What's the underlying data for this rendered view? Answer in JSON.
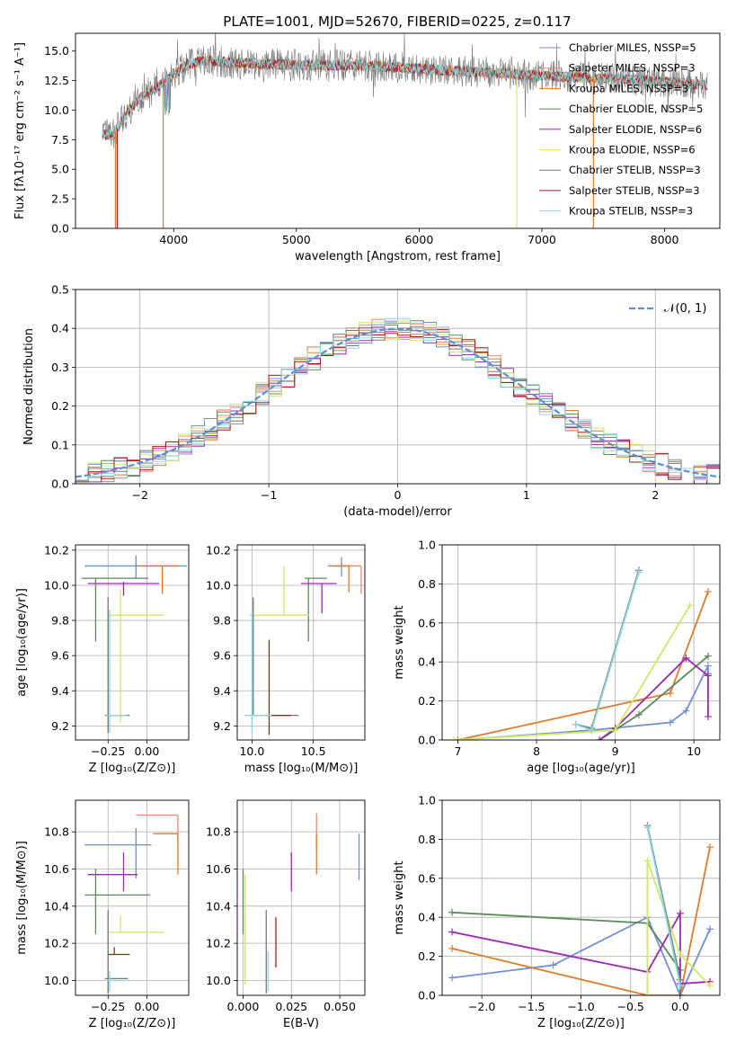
{
  "figure": {
    "title": "PLATE=1001, MJD=52670, FIBERID=0225, z=0.117"
  },
  "colors": {
    "chabrier_miles": "#6f8fd6",
    "salpeter_miles": "#ee8877",
    "kroupa_miles": "#e07b2a",
    "chabrier_elodie": "#5a8a5a",
    "salpeter_elodie": "#9a2ab0",
    "kroupa_elodie": "#cde86a",
    "chabrier_stelib": "#777777",
    "salpeter_stelib": "#b01818",
    "kroupa_stelib": "#8fd6e0",
    "normal": "#5b8fd6",
    "grid": "#b0b0b0"
  },
  "chart_data": [
    {
      "id": "spectrum",
      "type": "line",
      "title": "PLATE=1001, MJD=52670, FIBERID=0225, z=0.117",
      "xlabel": "wavelength [Angstrom, rest frame]",
      "ylabel": "Flux [fλ10⁻¹⁷ erg cm⁻² s⁻¹ A⁻¹]",
      "xlim": [
        3200,
        8450
      ],
      "ylim": [
        0,
        16.5
      ],
      "xticks": [
        "4000",
        "5000",
        "6000",
        "7000",
        "8000"
      ],
      "yticks": [
        "0.0",
        "2.5",
        "5.0",
        "7.5",
        "10.0",
        "12.5",
        "15.0"
      ],
      "grid": false,
      "legend_position": "right",
      "series": [
        {
          "name": "Chabrier MILES, NSSP=5",
          "color_key": "chabrier_miles"
        },
        {
          "name": "Salpeter MILES, NSSP=3",
          "color_key": "salpeter_miles"
        },
        {
          "name": "Kroupa MILES, NSSP=3",
          "color_key": "kroupa_miles"
        },
        {
          "name": "Chabrier ELODIE, NSSP=5",
          "color_key": "chabrier_elodie"
        },
        {
          "name": "Salpeter ELODIE, NSSP=6",
          "color_key": "salpeter_elodie"
        },
        {
          "name": "Kroupa ELODIE, NSSP=6",
          "color_key": "kroupa_elodie"
        },
        {
          "name": "Chabrier STELIB, NSSP=3",
          "color_key": "chabrier_stelib"
        },
        {
          "name": "Salpeter STELIB, NSSP=3",
          "color_key": "salpeter_stelib"
        },
        {
          "name": "Kroupa STELIB, NSSP=3",
          "color_key": "kroupa_stelib"
        }
      ],
      "continuum": {
        "x": [
          3420,
          3500,
          3600,
          3700,
          3800,
          3900,
          4000,
          4100,
          4200,
          4300,
          4500,
          5000,
          5500,
          6000,
          6500,
          7000,
          7500,
          8000,
          8350
        ],
        "y": [
          8.0,
          7.8,
          9.5,
          10.8,
          11.5,
          12.2,
          13.0,
          13.8,
          14.1,
          14.2,
          14.0,
          13.8,
          13.8,
          13.5,
          13.2,
          12.9,
          12.7,
          12.4,
          12.1
        ]
      },
      "dropouts": [
        {
          "x": 3525,
          "color_key": "kroupa_miles"
        },
        {
          "x": 3540,
          "color_key": "salpeter_stelib"
        },
        {
          "x": 3915,
          "color_key": "kroupa_miles"
        },
        {
          "x": 6795,
          "color_key": "kroupa_elodie"
        },
        {
          "x": 7420,
          "color_key": "kroupa_miles"
        }
      ]
    },
    {
      "id": "residuals",
      "type": "histogram",
      "xlabel": "(data-model)/error",
      "ylabel": "Normed distribution",
      "xlim": [
        -2.5,
        2.5
      ],
      "ylim": [
        0,
        0.5
      ],
      "xticks": [
        "−2",
        "−1",
        "0",
        "1",
        "2"
      ],
      "yticks": [
        "0.0",
        "0.1",
        "0.2",
        "0.3",
        "0.4",
        "0.5"
      ],
      "grid": true,
      "legend_position": "top-right",
      "legend": [
        "𝒩(0, 1)"
      ],
      "bin_width": 0.1,
      "bins_start": -2.5,
      "series_color_keys": [
        "chabrier_miles",
        "salpeter_miles",
        "kroupa_miles",
        "chabrier_elodie",
        "salpeter_elodie",
        "kroupa_elodie",
        "chabrier_stelib",
        "salpeter_stelib",
        "kroupa_stelib"
      ]
    },
    {
      "id": "age-vs-Z",
      "type": "errorbar",
      "xlabel": "Z [log₁₀(Z/Z⊙)]",
      "ylabel": "age  [log₁₀(age/yr)]",
      "xlim": [
        -0.46,
        0.27
      ],
      "ylim": [
        9.12,
        10.23
      ],
      "xticks": [
        "−0.25",
        "0.00"
      ],
      "yticks": [
        "9.2",
        "9.4",
        "9.6",
        "9.8",
        "10.0",
        "10.2"
      ],
      "grid": true,
      "points": [
        {
          "color_key": "chabrier_miles",
          "x": -0.07,
          "y": 10.11,
          "xlo": -0.4,
          "xhi": 0.26,
          "ylo": 10.04,
          "yhi": 10.17
        },
        {
          "color_key": "kroupa_miles",
          "x": 0.1,
          "y": 10.11,
          "xlo": -0.05,
          "xhi": 0.2,
          "ylo": 9.95,
          "yhi": 10.11
        },
        {
          "color_key": "salpeter_elodie",
          "x": -0.15,
          "y": 10.01,
          "xlo": -0.38,
          "xhi": 0.08,
          "ylo": 9.94,
          "yhi": 10.02
        },
        {
          "color_key": "chabrier_elodie",
          "x": -0.33,
          "y": 10.04,
          "xlo": -0.42,
          "xhi": 0.01,
          "ylo": 9.68,
          "yhi": 10.04
        },
        {
          "color_key": "kroupa_elodie",
          "x": -0.17,
          "y": 9.83,
          "xlo": -0.25,
          "xhi": 0.11,
          "ylo": 9.22,
          "yhi": 9.98
        },
        {
          "color_key": "chabrier_stelib",
          "x": -0.25,
          "y": 9.26,
          "xlo": -0.27,
          "xhi": -0.11,
          "ylo": 9.16,
          "yhi": 9.93
        },
        {
          "color_key": "kroupa_stelib",
          "x": -0.24,
          "y": 9.26,
          "xlo": -0.26,
          "xhi": -0.13,
          "ylo": 9.16,
          "yhi": 9.86
        }
      ]
    },
    {
      "id": "age-vs-mass",
      "type": "errorbar",
      "xlabel": "mass [log₁₀(M/M⊙)]",
      "ylabel": "",
      "xlim": [
        9.88,
        10.92
      ],
      "ylim": [
        9.12,
        10.23
      ],
      "xticks": [
        "10.0",
        "10.5"
      ],
      "yticks": [
        "9.2",
        "9.4",
        "9.6",
        "9.8",
        "10.0",
        "10.2"
      ],
      "grid": true,
      "points": [
        {
          "color_key": "chabrier_miles",
          "x": 10.73,
          "y": 10.11,
          "xlo": 10.62,
          "xhi": 10.82,
          "ylo": 10.05,
          "yhi": 10.16
        },
        {
          "color_key": "salpeter_miles",
          "x": 10.89,
          "y": 10.11,
          "xlo": 10.69,
          "xhi": 10.89,
          "ylo": 9.95,
          "yhi": 10.11
        },
        {
          "color_key": "kroupa_miles",
          "x": 10.79,
          "y": 10.11,
          "xlo": 10.65,
          "xhi": 10.8,
          "ylo": 9.96,
          "yhi": 10.11
        },
        {
          "color_key": "chabrier_elodie",
          "x": 10.46,
          "y": 10.04,
          "xlo": 10.43,
          "xhi": 10.61,
          "ylo": 9.68,
          "yhi": 10.04
        },
        {
          "color_key": "salpeter_elodie",
          "x": 10.57,
          "y": 10.01,
          "xlo": 10.4,
          "xhi": 10.69,
          "ylo": 9.84,
          "yhi": 10.01
        },
        {
          "color_key": "kroupa_elodie",
          "x": 10.26,
          "y": 9.83,
          "xlo": 9.98,
          "xhi": 10.47,
          "ylo": 9.83,
          "yhi": 10.11
        },
        {
          "color_key": "chabrier_stelib",
          "x": 10.01,
          "y": 9.26,
          "xlo": 9.98,
          "xhi": 10.38,
          "ylo": 9.26,
          "yhi": 9.93
        },
        {
          "color_key": "salpeter_stelib",
          "x": 10.14,
          "y": 9.26,
          "xlo": 10.12,
          "xhi": 10.32,
          "ylo": 9.15,
          "yhi": 9.69
        },
        {
          "color_key": "kroupa_stelib",
          "x": 10.0,
          "y": 9.26,
          "xlo": 9.94,
          "xhi": 10.16,
          "ylo": 9.16,
          "yhi": 9.86
        }
      ]
    },
    {
      "id": "massweight-vs-age",
      "type": "line",
      "xlabel": "age  [log₁₀(age/yr)]",
      "ylabel": "mass weight",
      "xlim": [
        6.8,
        10.33
      ],
      "ylim": [
        0,
        1.0
      ],
      "xticks": [
        "7",
        "8",
        "9",
        "10"
      ],
      "yticks": [
        "0.0",
        "0.2",
        "0.4",
        "0.6",
        "0.8",
        "1.0"
      ],
      "grid": true,
      "series": [
        {
          "color_key": "chabrier_miles",
          "x": [
            7.0,
            8.7,
            9.7,
            9.9,
            10.18,
            10.18
          ],
          "y": [
            0.0,
            0.05,
            0.09,
            0.15,
            0.38,
            0.34
          ]
        },
        {
          "color_key": "kroupa_miles",
          "x": [
            7.0,
            9.7,
            10.18
          ],
          "y": [
            0.0,
            0.24,
            0.76
          ]
        },
        {
          "color_key": "chabrier_elodie",
          "x": [
            8.8,
            9.3,
            10.18
          ],
          "y": [
            0.0,
            0.13,
            0.43
          ]
        },
        {
          "color_key": "salpeter_elodie",
          "x": [
            8.8,
            9.0,
            9.9,
            10.18,
            10.18
          ],
          "y": [
            0.0,
            0.06,
            0.42,
            0.33,
            0.12
          ]
        },
        {
          "color_key": "kroupa_elodie",
          "x": [
            6.95,
            9.0,
            9.95
          ],
          "y": [
            0.0,
            0.05,
            0.69
          ]
        },
        {
          "color_key": "chabrier_stelib",
          "x": [
            8.5,
            8.7,
            9.3
          ],
          "y": [
            0.08,
            0.06,
            0.87
          ]
        },
        {
          "color_key": "kroupa_stelib",
          "x": [
            8.5,
            8.7,
            9.3
          ],
          "y": [
            0.08,
            0.05,
            0.86
          ]
        }
      ]
    },
    {
      "id": "mass-vs-Z",
      "type": "errorbar",
      "xlabel": "Z [log₁₀(Z/Z⊙)]",
      "ylabel": "mass [log₁₀(M/M⊙)]",
      "xlim": [
        -0.46,
        0.27
      ],
      "ylim": [
        9.92,
        10.97
      ],
      "xticks": [
        "−0.25",
        "0.00"
      ],
      "yticks": [
        "10.0",
        "10.2",
        "10.4",
        "10.6",
        "10.8"
      ],
      "grid": true,
      "points": [
        {
          "color_key": "chabrier_miles",
          "x": -0.07,
          "y": 10.73,
          "xlo": -0.4,
          "xhi": 0.03,
          "ylo": 10.55,
          "yhi": 10.82
        },
        {
          "color_key": "salpeter_miles",
          "x": 0.2,
          "y": 10.89,
          "xlo": -0.07,
          "xhi": 0.2,
          "ylo": 10.75,
          "yhi": 10.89
        },
        {
          "color_key": "kroupa_miles",
          "x": 0.2,
          "y": 10.79,
          "xlo": 0.04,
          "xhi": 0.2,
          "ylo": 10.57,
          "yhi": 10.79
        },
        {
          "color_key": "salpeter_elodie",
          "x": -0.15,
          "y": 10.57,
          "xlo": -0.38,
          "xhi": -0.06,
          "ylo": 10.48,
          "yhi": 10.69
        },
        {
          "color_key": "chabrier_elodie",
          "x": -0.33,
          "y": 10.46,
          "xlo": -0.4,
          "xhi": 0.02,
          "ylo": 10.25,
          "yhi": 10.6
        },
        {
          "color_key": "kroupa_elodie",
          "x": -0.17,
          "y": 10.26,
          "xlo": -0.25,
          "xhi": 0.11,
          "ylo": 10.26,
          "yhi": 10.35
        },
        {
          "color_key": "chabrier_stelib",
          "x": -0.25,
          "y": 10.01,
          "xlo": -0.27,
          "xhi": -0.12,
          "ylo": 9.93,
          "yhi": 10.38
        },
        {
          "color_key": "salpeter_stelib",
          "x": -0.21,
          "y": 10.14,
          "xlo": -0.25,
          "xhi": -0.11,
          "ylo": 10.14,
          "yhi": 10.18
        },
        {
          "color_key": "kroupa_stelib",
          "x": -0.24,
          "y": 10.0,
          "xlo": -0.26,
          "xhi": -0.13,
          "ylo": 9.94,
          "yhi": 10.05
        }
      ]
    },
    {
      "id": "mass-vs-EBV",
      "type": "errorbar",
      "xlabel": "E(B-V)",
      "ylabel": "",
      "xlim": [
        -0.003,
        0.063
      ],
      "ylim": [
        9.92,
        10.97
      ],
      "xticks": [
        "0.000",
        "0.025",
        "0.050"
      ],
      "yticks": [
        "10.0",
        "10.2",
        "10.4",
        "10.6",
        "10.8"
      ],
      "grid": true,
      "points": [
        {
          "color_key": "chabrier_miles",
          "x": 0.06,
          "y": 10.73,
          "xlo": 0.06,
          "xhi": 0.06,
          "ylo": 10.54,
          "yhi": 10.79
        },
        {
          "color_key": "salpeter_miles",
          "x": 0.038,
          "y": 10.89,
          "xlo": 0.038,
          "xhi": 0.038,
          "ylo": 10.72,
          "yhi": 10.9
        },
        {
          "color_key": "kroupa_miles",
          "x": 0.038,
          "y": 10.79,
          "xlo": 0.038,
          "xhi": 0.038,
          "ylo": 10.57,
          "yhi": 10.79
        },
        {
          "color_key": "chabrier_elodie",
          "x": 0.0,
          "y": 10.46,
          "xlo": 0.0,
          "xhi": 0.0,
          "ylo": 10.25,
          "yhi": 10.6
        },
        {
          "color_key": "salpeter_elodie",
          "x": 0.025,
          "y": 10.57,
          "xlo": 0.025,
          "xhi": 0.025,
          "ylo": 10.48,
          "yhi": 10.69
        },
        {
          "color_key": "kroupa_elodie",
          "x": 0.001,
          "y": 10.26,
          "xlo": 0.001,
          "xhi": 0.001,
          "ylo": 9.98,
          "yhi": 10.57
        },
        {
          "color_key": "chabrier_stelib",
          "x": 0.012,
          "y": 10.01,
          "xlo": 0.012,
          "xhi": 0.012,
          "ylo": 9.93,
          "yhi": 10.38
        },
        {
          "color_key": "salpeter_stelib",
          "x": 0.017,
          "y": 10.14,
          "xlo": 0.017,
          "xhi": 0.017,
          "ylo": 10.07,
          "yhi": 10.34
        },
        {
          "color_key": "kroupa_stelib",
          "x": 0.013,
          "y": 10.0,
          "xlo": 0.013,
          "xhi": 0.013,
          "ylo": 9.94,
          "yhi": 10.16
        }
      ]
    },
    {
      "id": "massweight-vs-Z",
      "type": "line",
      "xlabel": "Z [log₁₀(Z/Z⊙)]",
      "ylabel": "mass weight",
      "xlim": [
        -2.4,
        0.4
      ],
      "ylim": [
        0,
        1.0
      ],
      "xticks": [
        "−2.0",
        "−1.5",
        "−1.0",
        "−0.5",
        "0.0"
      ],
      "yticks": [
        "0.0",
        "0.2",
        "0.4",
        "0.6",
        "0.8",
        "1.0"
      ],
      "grid": true,
      "series": [
        {
          "color_key": "chabrier_miles",
          "x": [
            -2.3,
            -1.28,
            -0.33,
            0.0,
            0.3
          ],
          "y": [
            0.09,
            0.155,
            0.4,
            0.0,
            0.34
          ]
        },
        {
          "color_key": "kroupa_miles",
          "x": [
            -2.3,
            -0.33,
            0.0,
            0.3
          ],
          "y": [
            0.24,
            0.0,
            0.0,
            0.76
          ]
        },
        {
          "color_key": "chabrier_elodie",
          "x": [
            -2.3,
            -0.33,
            0.0,
            0.0
          ],
          "y": [
            0.425,
            0.37,
            0.13,
            0.0
          ]
        },
        {
          "color_key": "salpeter_elodie",
          "x": [
            -2.3,
            -0.33,
            0.0,
            0.0,
            0.3
          ],
          "y": [
            0.325,
            0.12,
            0.42,
            0.06,
            0.07
          ]
        },
        {
          "color_key": "kroupa_elodie",
          "x": [
            -0.33,
            -0.33,
            0.0,
            0.3
          ],
          "y": [
            0.0,
            0.69,
            0.21,
            0.05
          ]
        },
        {
          "color_key": "chabrier_stelib",
          "x": [
            -0.33,
            0.0,
            0.0
          ],
          "y": [
            0.87,
            0.08,
            0.0
          ]
        },
        {
          "color_key": "kroupa_stelib",
          "x": [
            -0.33,
            0.0
          ],
          "y": [
            0.86,
            0.05
          ]
        }
      ]
    }
  ]
}
